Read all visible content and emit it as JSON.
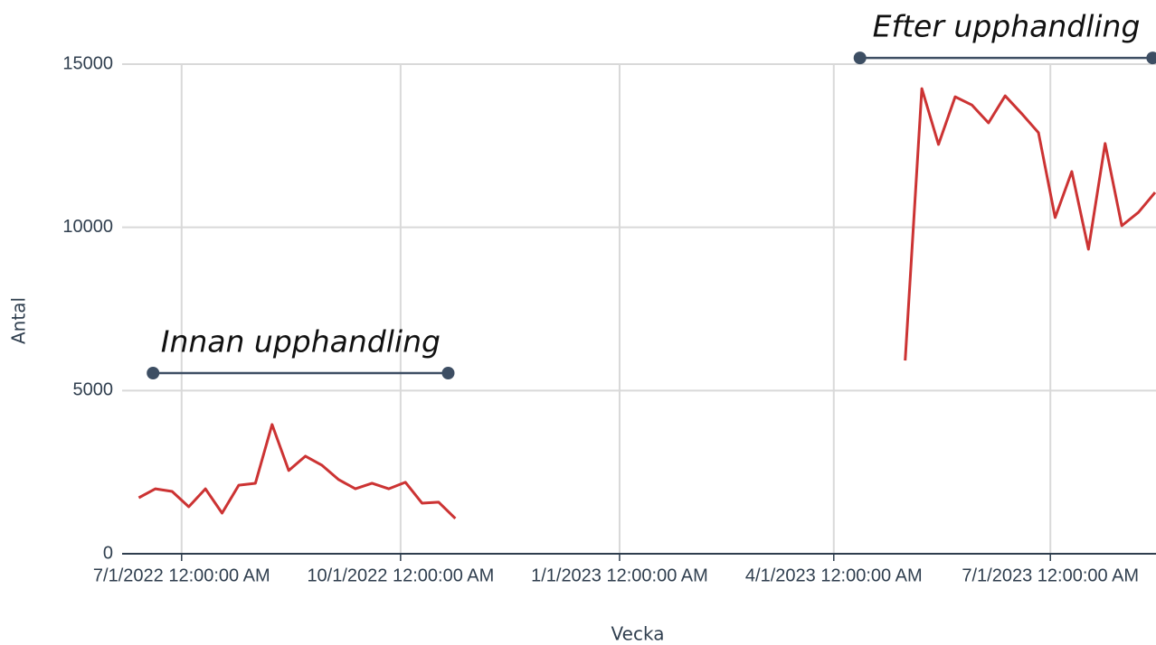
{
  "chart_data": {
    "type": "line",
    "x_label": "Vecka",
    "y_label": "Antal",
    "x": [
      "2022-06-13",
      "2022-06-20",
      "2022-06-27",
      "2022-07-04",
      "2022-07-11",
      "2022-07-18",
      "2022-07-25",
      "2022-08-01",
      "2022-08-08",
      "2022-08-15",
      "2022-08-22",
      "2022-08-29",
      "2022-09-05",
      "2022-09-12",
      "2022-09-19",
      "2022-09-26",
      "2022-10-03",
      "2022-10-10",
      "2022-10-17",
      "2022-10-24",
      "2022-10-31",
      "2022-11-07",
      "2022-11-14",
      "2022-11-21",
      "2022-11-28",
      "2022-12-05",
      "2022-12-12",
      "2022-12-19",
      "2022-12-26",
      "2023-01-02",
      "2023-01-09",
      "2023-01-16",
      "2023-01-23",
      "2023-01-30",
      "2023-02-06",
      "2023-02-13",
      "2023-02-20",
      "2023-02-27",
      "2023-03-06",
      "2023-03-13",
      "2023-03-20",
      "2023-03-27",
      "2023-04-03",
      "2023-04-10",
      "2023-04-17",
      "2023-04-24",
      "2023-05-01",
      "2023-05-08",
      "2023-05-15",
      "2023-05-22",
      "2023-05-29",
      "2023-06-05",
      "2023-06-12",
      "2023-06-19",
      "2023-06-26",
      "2023-07-03",
      "2023-07-10",
      "2023-07-17",
      "2023-07-24",
      "2023-07-31",
      "2023-08-07",
      "2023-08-14"
    ],
    "series": [
      {
        "name": "Antal",
        "color": "#cc3333",
        "values": [
          1716,
          1990,
          1910,
          1440,
          1990,
          1245,
          2100,
          2160,
          3960,
          2550,
          2990,
          2710,
          2270,
          1990,
          2160,
          1990,
          2190,
          1550,
          1580,
          1080,
          null,
          null,
          null,
          null,
          null,
          null,
          null,
          null,
          null,
          null,
          null,
          null,
          null,
          null,
          null,
          null,
          null,
          null,
          null,
          null,
          null,
          null,
          null,
          null,
          null,
          null,
          5920,
          14250,
          12540,
          14000,
          13750,
          13200,
          14030,
          13480,
          12900,
          10300,
          11710,
          9330,
          12570,
          10050,
          10460,
          11070
        ]
      }
    ],
    "xlim": [
      "2022-06-06",
      "2023-08-14"
    ],
    "xticks": [
      {
        "value": "2022-07-01",
        "label": "7/1/2022 12:00:00 AM"
      },
      {
        "value": "2022-10-01",
        "label": "10/1/2022 12:00:00 AM"
      },
      {
        "value": "2023-01-01",
        "label": "1/1/2023 12:00:00 AM"
      },
      {
        "value": "2023-04-01",
        "label": "4/1/2023 12:00:00 AM"
      },
      {
        "value": "2023-07-01",
        "label": "7/1/2023 12:00:00 AM"
      }
    ],
    "ylim": [
      0,
      15000
    ],
    "yticks": [
      0,
      5000,
      10000,
      15000
    ],
    "grid": true,
    "annotations": [
      {
        "text": "Innan upphandling",
        "x": [
          "2022-06-19",
          "2022-10-21"
        ],
        "y": 5535
      },
      {
        "text": "Efter upphandling",
        "x": [
          "2023-04-12",
          "2023-08-13"
        ],
        "y": 15190
      }
    ]
  }
}
